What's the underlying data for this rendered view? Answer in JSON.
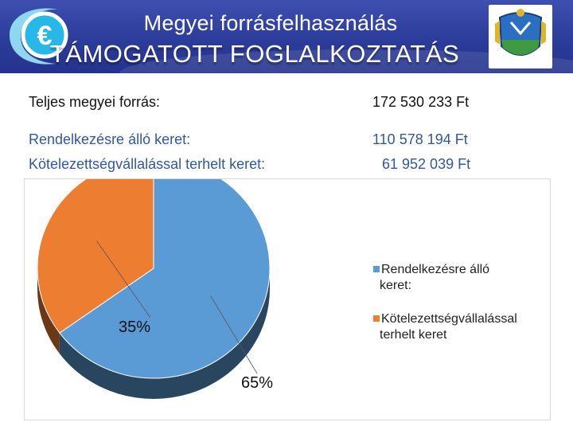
{
  "header": {
    "title_line1": "Megyei forrásfelhasználás",
    "title_line2": "TÁMOGATOTT FOGLALKOZTATÁS",
    "logo_icon": "euro-logo-icon",
    "coat_icon": "coat-of-arms-icon"
  },
  "summary": {
    "total_label": "Teljes megyei forrás:",
    "total_value": "172 530 233 Ft",
    "available_label": "Rendelkezésre álló keret:",
    "available_value": "110 578 194 Ft",
    "committed_label": "Kötelezettségvállalással terhelt keret:",
    "committed_value": "61 952 039 Ft"
  },
  "colors": {
    "header_blue": "#2c3c9a",
    "series_blue": "#5b9bd5",
    "series_orange": "#ed7d31"
  },
  "chart_data": {
    "type": "pie",
    "style": "3d",
    "slices": [
      {
        "label": "Rendelkezésre álló keret:",
        "value": 65,
        "display": "65%",
        "color": "#5b9bd5"
      },
      {
        "label": "Kötelezettségvállalással terhelt keret",
        "value": 35,
        "display": "35%",
        "color": "#ed7d31"
      }
    ],
    "legend_position": "right",
    "legend": [
      {
        "line1": "Rendelkezésre álló",
        "line2": "keret:"
      },
      {
        "line1": "Kötelezettségvállalással",
        "line2": "terhelt keret"
      }
    ]
  }
}
